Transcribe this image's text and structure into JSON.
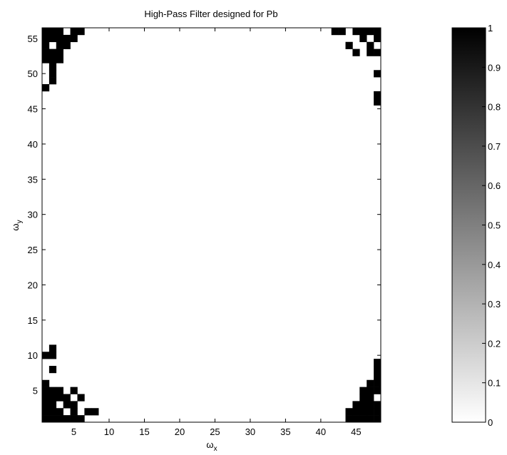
{
  "chart_data": [
    {
      "type": "heatmap",
      "title": "High-Pass Filter designed for Pb",
      "xlabel": "ω",
      "xlabel_sub": "x",
      "ylabel": "ω",
      "ylabel_sub": "y",
      "xlim": [
        0.5,
        48.5
      ],
      "ylim": [
        0.5,
        56.5
      ],
      "xticks": [
        5,
        10,
        15,
        20,
        25,
        30,
        35,
        40,
        45
      ],
      "yticks": [
        5,
        10,
        15,
        20,
        25,
        30,
        35,
        40,
        45,
        50,
        55
      ],
      "colormap": "gray-reversed",
      "background_value": 0,
      "high_value": 1,
      "cells_value_1": [
        [
          1,
          56
        ],
        [
          2,
          56
        ],
        [
          3,
          56
        ],
        [
          5,
          56
        ],
        [
          6,
          56
        ],
        [
          1,
          55
        ],
        [
          2,
          55
        ],
        [
          3,
          55
        ],
        [
          4,
          55
        ],
        [
          5,
          55
        ],
        [
          1,
          54
        ],
        [
          3,
          54
        ],
        [
          4,
          54
        ],
        [
          1,
          53
        ],
        [
          2,
          53
        ],
        [
          3,
          53
        ],
        [
          1,
          52
        ],
        [
          2,
          52
        ],
        [
          3,
          52
        ],
        [
          2,
          51
        ],
        [
          2,
          50
        ],
        [
          2,
          49
        ],
        [
          1,
          48
        ],
        [
          42,
          56
        ],
        [
          43,
          56
        ],
        [
          45,
          56
        ],
        [
          46,
          56
        ],
        [
          47,
          56
        ],
        [
          48,
          56
        ],
        [
          46,
          55
        ],
        [
          48,
          55
        ],
        [
          44,
          54
        ],
        [
          47,
          54
        ],
        [
          45,
          53
        ],
        [
          47,
          53
        ],
        [
          48,
          53
        ],
        [
          48,
          50
        ],
        [
          48,
          47
        ],
        [
          48,
          46
        ],
        [
          1,
          10
        ],
        [
          2,
          10
        ],
        [
          2,
          11
        ],
        [
          2,
          8
        ],
        [
          1,
          6
        ],
        [
          1,
          5
        ],
        [
          2,
          5
        ],
        [
          3,
          5
        ],
        [
          5,
          5
        ],
        [
          1,
          4
        ],
        [
          2,
          4
        ],
        [
          3,
          4
        ],
        [
          4,
          4
        ],
        [
          6,
          4
        ],
        [
          1,
          3
        ],
        [
          2,
          3
        ],
        [
          4,
          3
        ],
        [
          5,
          3
        ],
        [
          1,
          2
        ],
        [
          2,
          2
        ],
        [
          3,
          2
        ],
        [
          5,
          2
        ],
        [
          7,
          2
        ],
        [
          8,
          2
        ],
        [
          1,
          1
        ],
        [
          2,
          1
        ],
        [
          3,
          1
        ],
        [
          4,
          1
        ],
        [
          5,
          1
        ],
        [
          6,
          1
        ],
        [
          48,
          9
        ],
        [
          48,
          8
        ],
        [
          48,
          7
        ],
        [
          47,
          6
        ],
        [
          48,
          6
        ],
        [
          46,
          5
        ],
        [
          47,
          5
        ],
        [
          48,
          5
        ],
        [
          46,
          4
        ],
        [
          47,
          4
        ],
        [
          45,
          3
        ],
        [
          46,
          3
        ],
        [
          47,
          3
        ],
        [
          48,
          3
        ],
        [
          44,
          2
        ],
        [
          45,
          2
        ],
        [
          46,
          2
        ],
        [
          47,
          2
        ],
        [
          48,
          2
        ],
        [
          44,
          1
        ],
        [
          45,
          1
        ],
        [
          46,
          1
        ],
        [
          47,
          1
        ],
        [
          48,
          1
        ]
      ]
    },
    {
      "type": "colorbar",
      "ticks": [
        "0",
        "0.1",
        "0.2",
        "0.3",
        "0.4",
        "0.5",
        "0.6",
        "0.7",
        "0.8",
        "0.9",
        "1"
      ],
      "tick_values": [
        0,
        0.1,
        0.2,
        0.3,
        0.4,
        0.5,
        0.6,
        0.7,
        0.8,
        0.9,
        1
      ],
      "lim": [
        0,
        1
      ]
    }
  ]
}
